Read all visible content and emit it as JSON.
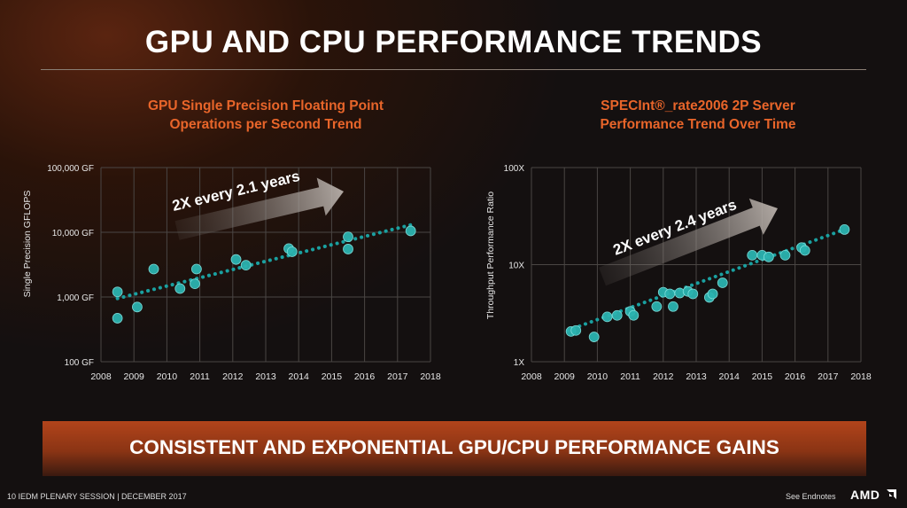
{
  "slide": {
    "title": "GPU AND CPU PERFORMANCE TRENDS",
    "banner": "CONSISTENT AND EXPONENTIAL GPU/CPU PERFORMANCE GAINS",
    "footer_left": "10  IEDM PLENARY SESSION  |  DECEMBER 2017",
    "footer_right": "See Endnotes",
    "logo": "AMD",
    "logo_icon": "amd-arrow-icon",
    "colors": {
      "accent": "#e8652a",
      "marker": "#2bb3b0",
      "trend": "#1aa0a0",
      "banner": "#a63e18"
    }
  },
  "chart_data": [
    {
      "type": "scatter",
      "title": [
        "GPU Single Precision Floating Point",
        "Operations per Second Trend"
      ],
      "xlabel": "",
      "ylabel": "Single Precision GFLOPS",
      "xlim": [
        2008,
        2018
      ],
      "xticks": [
        "2008",
        "2009",
        "2010",
        "2011",
        "2012",
        "2013",
        "2014",
        "2015",
        "2016",
        "2017",
        "2018"
      ],
      "ylim": [
        100,
        100000
      ],
      "yscale": "log",
      "yticks": [
        {
          "value": 100000,
          "label": "100,000  GF"
        },
        {
          "value": 10000,
          "label": "10,000  GF"
        },
        {
          "value": 1000,
          "label": "1,000  GF"
        },
        {
          "value": 100,
          "label": "100  GF"
        }
      ],
      "grid": true,
      "annotation": "2X every 2.1 years",
      "trendline": {
        "x": [
          2008.5,
          2017.4
        ],
        "y": [
          950,
          13000
        ]
      },
      "points": [
        {
          "x": 2008.5,
          "y": 1200
        },
        {
          "x": 2008.5,
          "y": 470
        },
        {
          "x": 2009.1,
          "y": 700
        },
        {
          "x": 2009.6,
          "y": 2700
        },
        {
          "x": 2010.4,
          "y": 1350
        },
        {
          "x": 2010.85,
          "y": 1600
        },
        {
          "x": 2010.9,
          "y": 2700
        },
        {
          "x": 2012.1,
          "y": 3800
        },
        {
          "x": 2012.4,
          "y": 3100
        },
        {
          "x": 2013.7,
          "y": 5600
        },
        {
          "x": 2013.8,
          "y": 5000
        },
        {
          "x": 2015.5,
          "y": 8500
        },
        {
          "x": 2015.5,
          "y": 5500
        },
        {
          "x": 2017.4,
          "y": 10500
        }
      ]
    },
    {
      "type": "scatter",
      "title": [
        "SPECInt®_rate2006 2P Server",
        "Performance Trend Over Time"
      ],
      "xlabel": "",
      "ylabel": "Throughput Performance Ratio",
      "xlim": [
        2008,
        2018
      ],
      "xticks": [
        "2008",
        "2009",
        "2010",
        "2011",
        "2012",
        "2013",
        "2014",
        "2015",
        "2016",
        "2017",
        "2018"
      ],
      "ylim": [
        1,
        100
      ],
      "yscale": "log",
      "yticks": [
        {
          "value": 100,
          "label": "100X"
        },
        {
          "value": 10,
          "label": "10X"
        },
        {
          "value": 1,
          "label": "1X"
        }
      ],
      "grid": true,
      "annotation": "2X every 2.4 years",
      "trendline": {
        "x": [
          2009.1,
          2017.5
        ],
        "y": [
          2.1,
          23
        ]
      },
      "points": [
        {
          "x": 2009.2,
          "y": 2.05
        },
        {
          "x": 2009.35,
          "y": 2.1
        },
        {
          "x": 2009.9,
          "y": 1.8
        },
        {
          "x": 2010.3,
          "y": 2.9
        },
        {
          "x": 2010.6,
          "y": 3.0
        },
        {
          "x": 2011.0,
          "y": 3.3
        },
        {
          "x": 2011.1,
          "y": 3.0
        },
        {
          "x": 2011.8,
          "y": 3.7
        },
        {
          "x": 2012.0,
          "y": 5.2
        },
        {
          "x": 2012.2,
          "y": 5.0
        },
        {
          "x": 2012.3,
          "y": 3.7
        },
        {
          "x": 2012.5,
          "y": 5.1
        },
        {
          "x": 2012.75,
          "y": 5.3
        },
        {
          "x": 2012.9,
          "y": 5.0
        },
        {
          "x": 2013.4,
          "y": 4.6
        },
        {
          "x": 2013.5,
          "y": 5.0
        },
        {
          "x": 2013.8,
          "y": 6.5
        },
        {
          "x": 2014.7,
          "y": 12.5
        },
        {
          "x": 2015.0,
          "y": 12.5
        },
        {
          "x": 2015.2,
          "y": 12.0
        },
        {
          "x": 2015.7,
          "y": 12.5
        },
        {
          "x": 2016.2,
          "y": 15.0
        },
        {
          "x": 2016.3,
          "y": 14.0
        },
        {
          "x": 2017.5,
          "y": 23.0
        }
      ]
    }
  ]
}
